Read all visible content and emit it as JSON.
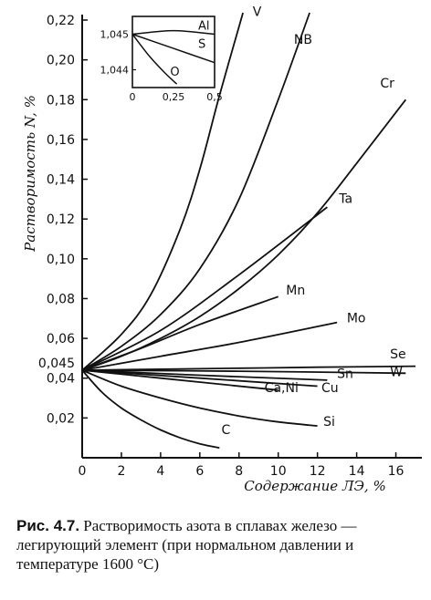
{
  "caption": {
    "number": "Рис. 4.7.",
    "text": " Растворимость азота в сплавах железо — легирующий элемент (при нормальном давлении и температуре 1600 °С)"
  },
  "chart_data": [
    {
      "type": "line",
      "ylabel": "Растворимость N, %",
      "xlabel": "Содержание ЛЭ, %",
      "xlim": [
        0,
        17
      ],
      "ylim": [
        0,
        0.22
      ],
      "x_ticks": [
        "0",
        "2",
        "4",
        "6",
        "8",
        "10",
        "12",
        "14",
        "16"
      ],
      "y_ticks": [
        "0,02",
        "0,04",
        "0,06",
        "0,08",
        "0,10",
        "0,12",
        "0,14",
        "0,16",
        "0,18",
        "0,20",
        "0,22"
      ],
      "y_extra_tick": "0,045",
      "grid": false,
      "series": [
        {
          "name": "V",
          "x": [
            0,
            2,
            3.5,
            5,
            6,
            7,
            8.2
          ],
          "y": [
            0.044,
            0.062,
            0.082,
            0.115,
            0.145,
            0.182,
            0.233
          ]
        },
        {
          "name": "NB",
          "x": [
            0,
            2,
            4,
            6,
            8,
            10,
            11.6
          ],
          "y": [
            0.044,
            0.056,
            0.072,
            0.095,
            0.13,
            0.18,
            0.233
          ]
        },
        {
          "name": "Cr",
          "x": [
            0,
            2,
            4,
            6,
            8,
            10,
            12,
            14,
            16.5
          ],
          "y": [
            0.044,
            0.051,
            0.06,
            0.071,
            0.085,
            0.102,
            0.123,
            0.148,
            0.18
          ]
        },
        {
          "name": "Ta",
          "x": [
            0,
            4,
            8,
            12.5
          ],
          "y": [
            0.044,
            0.064,
            0.092,
            0.126
          ]
        },
        {
          "name": "Mn",
          "x": [
            0,
            3,
            6,
            10
          ],
          "y": [
            0.044,
            0.055,
            0.067,
            0.081
          ]
        },
        {
          "name": "Mo",
          "x": [
            0,
            4,
            8,
            13
          ],
          "y": [
            0.044,
            0.051,
            0.058,
            0.068
          ]
        },
        {
          "name": "Se",
          "x": [
            0,
            4,
            8,
            12,
            17
          ],
          "y": [
            0.044,
            0.0445,
            0.045,
            0.0455,
            0.046
          ]
        },
        {
          "name": "W",
          "x": [
            0,
            8,
            16.5
          ],
          "y": [
            0.044,
            0.0435,
            0.0425
          ]
        },
        {
          "name": "Sn",
          "x": [
            0,
            6,
            12.5
          ],
          "y": [
            0.044,
            0.0415,
            0.039
          ]
        },
        {
          "name": "Cu",
          "x": [
            0,
            6,
            12
          ],
          "y": [
            0.044,
            0.04,
            0.036
          ]
        },
        {
          "name": "Ca,Ni",
          "x": [
            0,
            4,
            10
          ],
          "y": [
            0.044,
            0.04,
            0.034
          ]
        },
        {
          "name": "Si",
          "x": [
            0,
            2,
            4,
            6,
            8,
            10,
            12
          ],
          "y": [
            0.044,
            0.036,
            0.03,
            0.025,
            0.021,
            0.018,
            0.016
          ]
        },
        {
          "name": "C",
          "x": [
            0,
            1,
            2,
            3,
            4,
            5,
            6,
            7
          ],
          "y": [
            0.044,
            0.033,
            0.025,
            0.019,
            0.014,
            0.01,
            0.007,
            0.005
          ]
        }
      ]
    },
    {
      "type": "line",
      "x_ticks": [
        "0",
        "0,25",
        "0,5"
      ],
      "y_ticks": [
        "1,044",
        "1,045"
      ],
      "xlim": [
        0,
        0.5
      ],
      "ylim": [
        1.0435,
        1.0455
      ],
      "series": [
        {
          "name": "Al",
          "x": [
            0,
            0.25,
            0.5
          ],
          "y": [
            1.045,
            1.0451,
            1.045
          ]
        },
        {
          "name": "S",
          "x": [
            0,
            0.25,
            0.5
          ],
          "y": [
            1.045,
            1.0446,
            1.0442
          ]
        },
        {
          "name": "O",
          "x": [
            0,
            0.1,
            0.2,
            0.27
          ],
          "y": [
            1.045,
            1.0444,
            1.0439,
            1.0436
          ]
        }
      ]
    }
  ]
}
